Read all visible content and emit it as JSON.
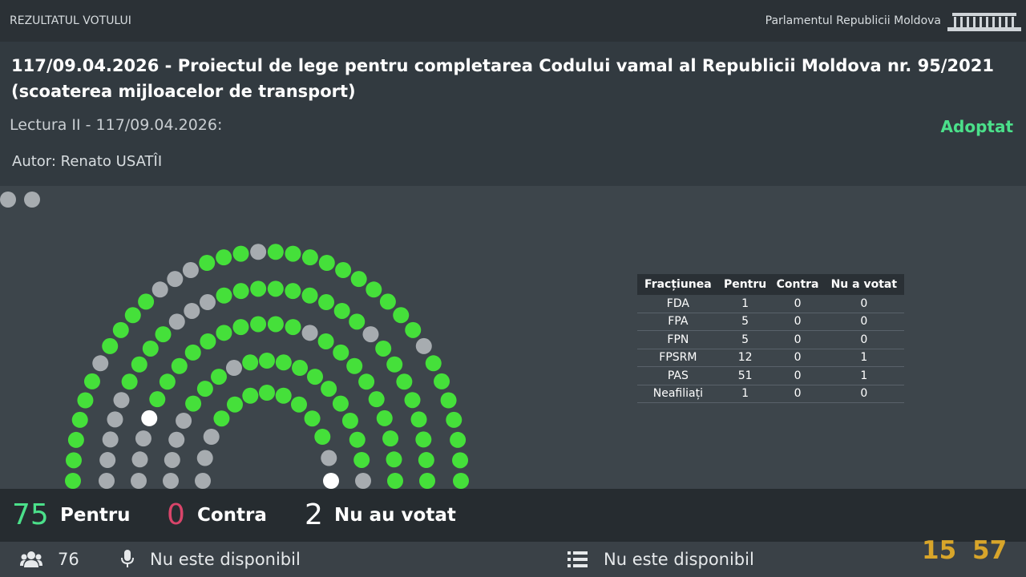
{
  "header": {
    "label": "REZULTATUL VOTULUI",
    "institution": "Parlamentul Republicii Moldova"
  },
  "bill": {
    "title": [
      "117/09.04.2026 - Proiectul de lege pentru completarea Codului vamal al Republicii Moldova nr. 95/2021",
      "(scoaterea mijloacelor de transport)"
    ],
    "reading": "Lectura II - 117/09.04.2026:",
    "status": "Adoptat",
    "author": "Autor: Renato USATÎI"
  },
  "table": {
    "columns": [
      "Fracțiunea",
      "Pentru",
      "Contra",
      "Nu a votat"
    ],
    "rows": [
      [
        "FDA",
        1,
        0,
        0
      ],
      [
        "FPA",
        5,
        0,
        0
      ],
      [
        "FPN",
        5,
        0,
        0
      ],
      [
        "FPSRM",
        12,
        0,
        1
      ],
      [
        "PAS",
        51,
        0,
        1
      ],
      [
        "Neafiliați",
        1,
        0,
        0
      ]
    ]
  },
  "totals": [
    {
      "count": 75,
      "label": "Pentru"
    },
    {
      "count": 0,
      "label": "Contra"
    },
    {
      "count": 2,
      "label": "Nu au votat"
    }
  ],
  "footer": {
    "present": 76,
    "microphone": "Nu este disponibil",
    "queue": "Nu este disponibil",
    "clock": [
      "15",
      "57"
    ]
  }
}
